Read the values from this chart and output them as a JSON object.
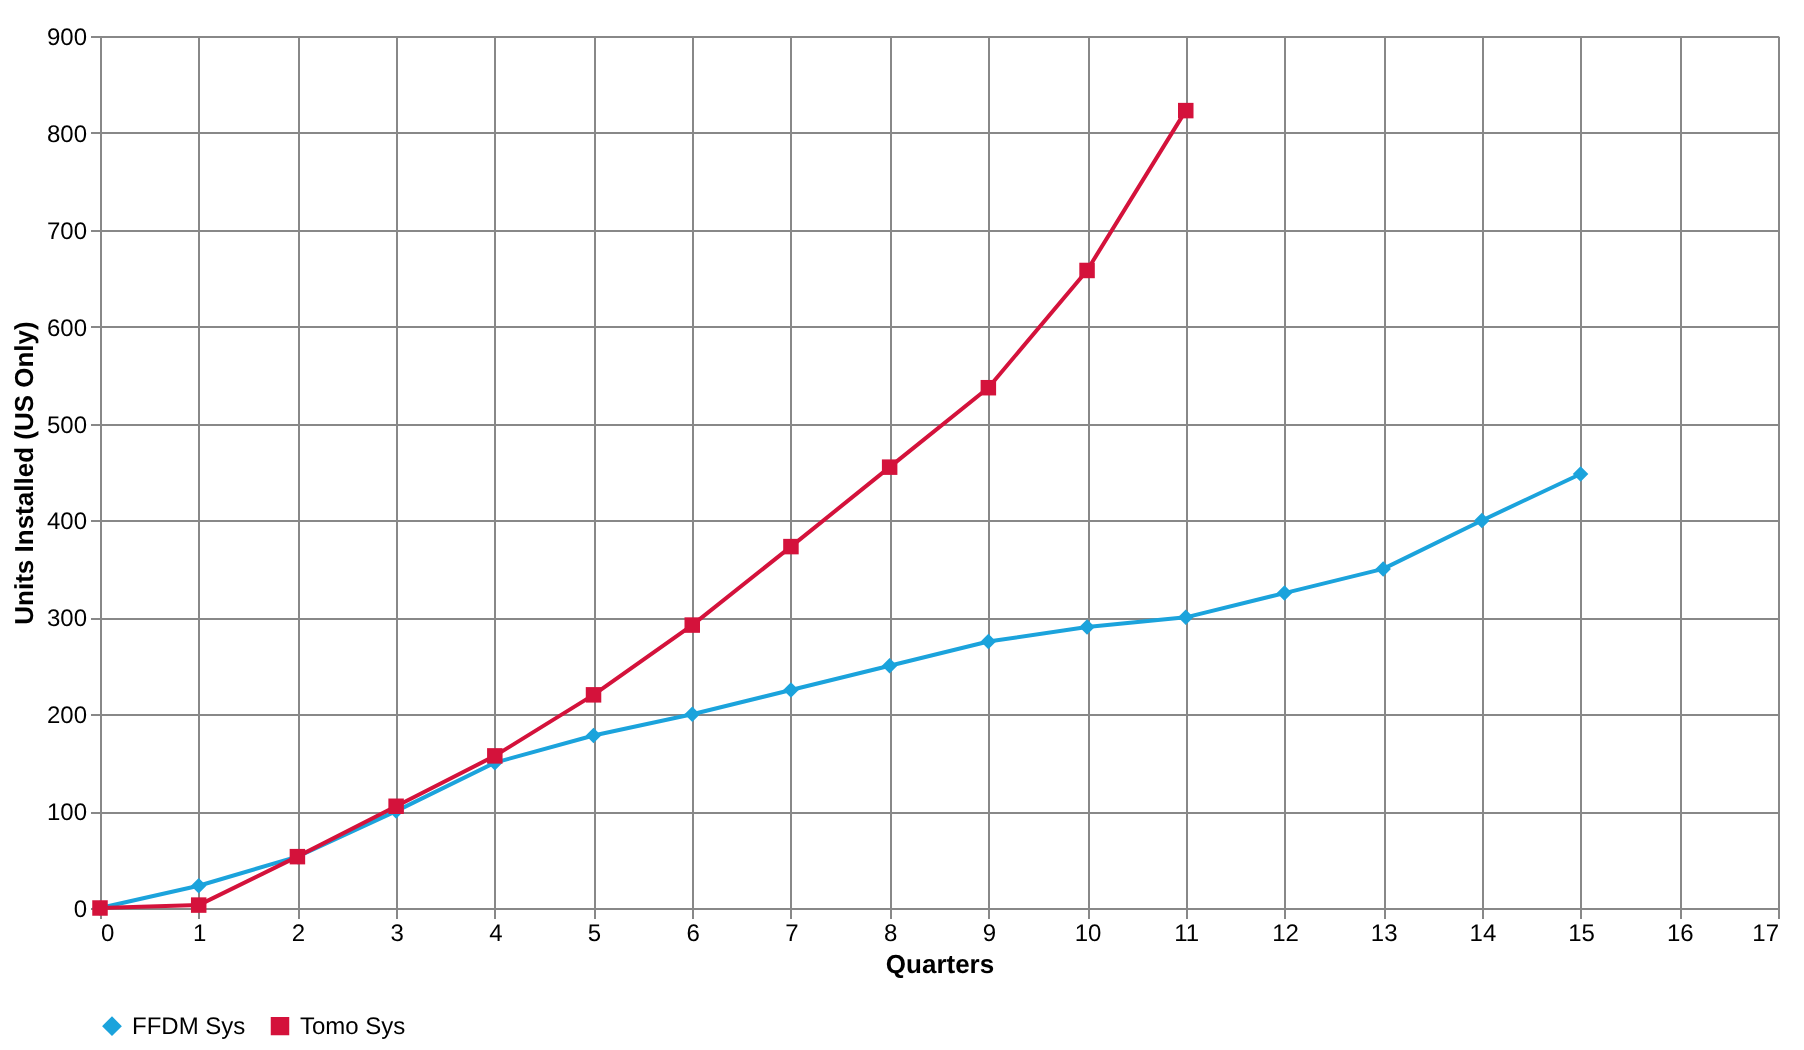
{
  "chart_data": {
    "type": "line",
    "xlabel": "Quarters",
    "ylabel": "Units Installed (US Only)",
    "x": [
      0,
      1,
      2,
      3,
      4,
      5,
      6,
      7,
      8,
      9,
      10,
      11,
      12,
      13,
      14,
      15
    ],
    "series": [
      {
        "name": "FFDM Sys",
        "color": "#1ba3dc",
        "marker": "diamond",
        "values": [
          0,
          23,
          53,
          100,
          150,
          178,
          200,
          225,
          250,
          275,
          290,
          300,
          325,
          350,
          400,
          448
        ]
      },
      {
        "name": "Tomo Sys",
        "color": "#d4123b",
        "marker": "square",
        "x": [
          0,
          1,
          2,
          3,
          4,
          5,
          6,
          7,
          8,
          9,
          10,
          11
        ],
        "values": [
          0,
          3,
          53,
          105,
          157,
          220,
          292,
          373,
          455,
          537,
          658,
          823
        ]
      }
    ],
    "xlim": [
      0,
      17
    ],
    "xticks": [
      0,
      1,
      2,
      3,
      4,
      5,
      6,
      7,
      8,
      9,
      10,
      11,
      12,
      13,
      14,
      15,
      16,
      17
    ],
    "ylim": [
      0,
      900
    ],
    "yticks": [
      0,
      100,
      200,
      300,
      400,
      500,
      600,
      700,
      800,
      900
    ],
    "grid": true,
    "legend": "bottom",
    "line_style": "solid"
  }
}
